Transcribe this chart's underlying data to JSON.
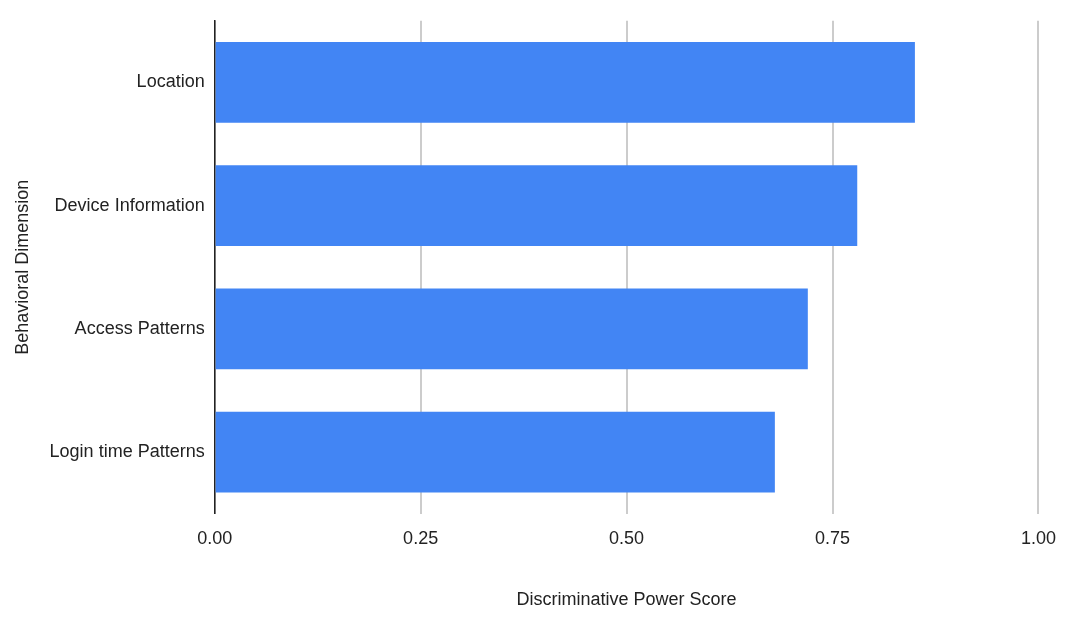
{
  "chart_data": {
    "type": "bar",
    "orientation": "horizontal",
    "xlabel": "Discriminative Power Score",
    "ylabel": "Behavioral Dimension",
    "categories": [
      "Location",
      "Device Information",
      "Access Patterns",
      "Login time Patterns"
    ],
    "values": [
      0.85,
      0.78,
      0.72,
      0.68
    ],
    "color": "#4285f4",
    "xlim": [
      0,
      1
    ],
    "xticks": [
      {
        "value": 0,
        "label": "0.00"
      },
      {
        "value": 0.25,
        "label": "0.25"
      },
      {
        "value": 0.5,
        "label": "0.50"
      },
      {
        "value": 0.75,
        "label": "0.75"
      },
      {
        "value": 1,
        "label": "1.00"
      }
    ],
    "grid": "x",
    "legend": false
  }
}
